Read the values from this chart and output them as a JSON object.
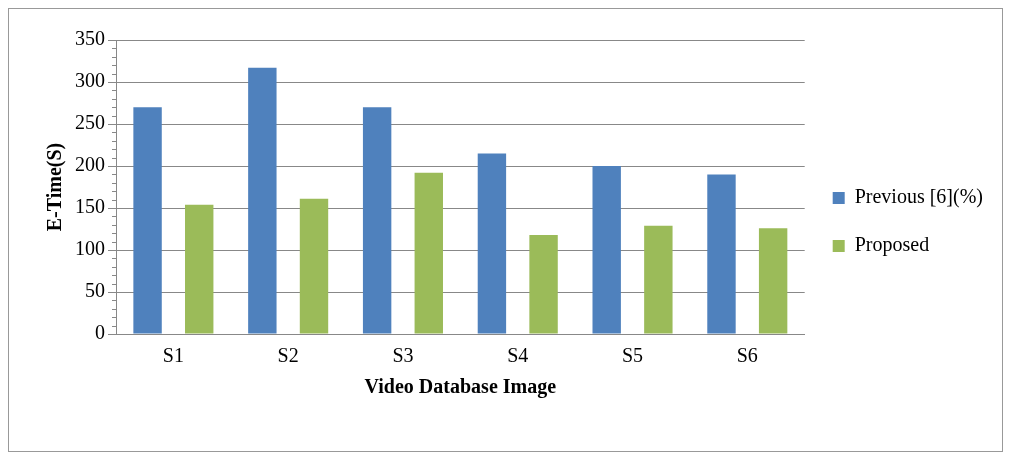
{
  "chart_data": {
    "type": "bar",
    "xlabel": "Video Database Image",
    "ylabel": "E-Time(S)",
    "categories": [
      "S1",
      "S2",
      "S3",
      "S4",
      "S5",
      "S6"
    ],
    "series": [
      {
        "name": "Previous [6](%)",
        "color": "#4f81bd",
        "values": [
          270,
          317,
          270,
          215,
          200,
          190
        ]
      },
      {
        "name": "Proposed",
        "color": "#9bbb59",
        "values": [
          154,
          161,
          192,
          118,
          129,
          126
        ]
      }
    ],
    "ylim": [
      0,
      350
    ],
    "yticks": [
      0,
      50,
      100,
      150,
      200,
      250,
      300,
      350
    ],
    "grid": "y",
    "legend": "right"
  }
}
